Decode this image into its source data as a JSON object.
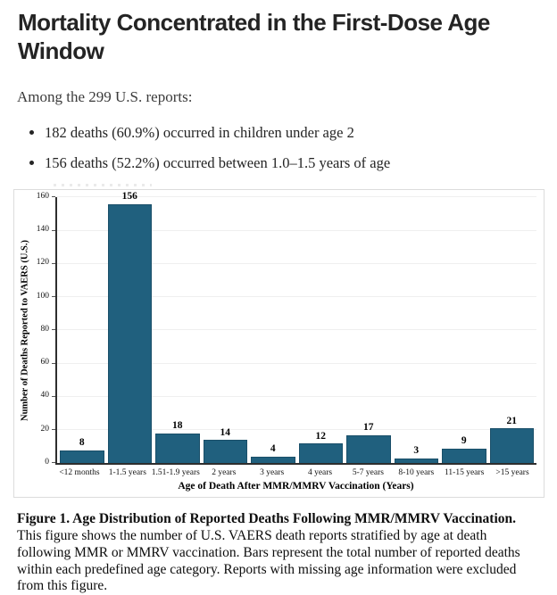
{
  "page": {
    "title_lines": [
      "Mortality Concentrated in the First-Dose Age",
      "Window"
    ],
    "intro": "Among the 299 U.S. reports:",
    "bullets": [
      "182 deaths (60.9%) occurred in children under age 2",
      "156 deaths (52.2%) occurred between 1.0–1.5 years of age"
    ]
  },
  "chart_data": {
    "type": "bar",
    "categories": [
      "<12 months",
      "1-1.5 years",
      "1.51-1.9 years",
      "2 years",
      "3 years",
      "4 years",
      "5-7 years",
      "8-10 years",
      "11-15 years",
      ">15 years"
    ],
    "values": [
      8,
      156,
      18,
      14,
      4,
      12,
      17,
      3,
      9,
      21
    ],
    "title": "",
    "xlabel": "Age of Death After MMR/MMRV Vaccination (Years)",
    "ylabel": "Number of Deaths Reported to VAERS (U.S.)",
    "ylim": [
      0,
      160
    ],
    "ytick_step": 20,
    "grid": true,
    "legend": false,
    "bar_color": "#20607e",
    "bar_border_color": "#1a4f69"
  },
  "caption": {
    "lead": "Figure 1. Age Distribution of Reported Deaths Following MMR/MMRV Vaccination.",
    "body": "This figure shows the number of U.S. VAERS death reports stratified by age at death following MMR or MMRV vaccination. Bars represent the total number of reported deaths within each predefined age category. Reports with missing age information were excluded from this figure."
  }
}
